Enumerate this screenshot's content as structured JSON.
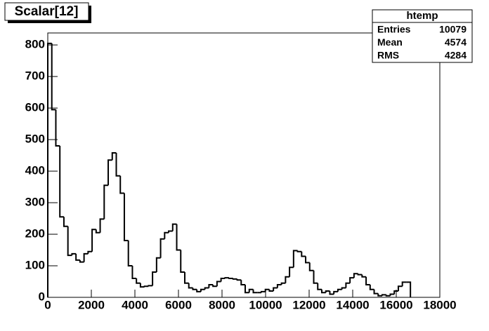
{
  "chart_data": {
    "type": "histogram",
    "title": "Scalar[12]",
    "bins": [
      0,
      185,
      370,
      555,
      740,
      925,
      1110,
      1295,
      1480,
      1665,
      1850,
      2035,
      2220,
      2405,
      2590,
      2775,
      2960,
      3145,
      3330,
      3515,
      3700,
      3885,
      4070,
      4255,
      4440,
      4625,
      4810,
      4995,
      5180,
      5365,
      5550,
      5735,
      5920,
      6105,
      6290,
      6475,
      6660,
      6845,
      7030,
      7215,
      7400,
      7585,
      7770,
      7955,
      8140,
      8325,
      8510,
      8695,
      8880,
      9065,
      9250,
      9435,
      9620,
      9805,
      9990,
      10175,
      10360,
      10545,
      10730,
      10915,
      11100,
      11285,
      11470,
      11655,
      11840,
      12025,
      12210,
      12395,
      12580,
      12765,
      12950,
      13135,
      13320,
      13505,
      13690,
      13875,
      14060,
      14245,
      14430,
      14615,
      14800,
      14985,
      15170,
      15355,
      15540,
      15725,
      15910,
      16095,
      16280,
      16465,
      16650
    ],
    "values": [
      805,
      595,
      480,
      255,
      225,
      133,
      138,
      118,
      112,
      138,
      145,
      215,
      205,
      248,
      355,
      435,
      458,
      385,
      330,
      180,
      100,
      60,
      45,
      33,
      35,
      37,
      80,
      125,
      185,
      205,
      210,
      232,
      150,
      80,
      45,
      30,
      25,
      18,
      25,
      30,
      40,
      35,
      50,
      60,
      62,
      60,
      58,
      55,
      40,
      15,
      25,
      15,
      15,
      18,
      25,
      20,
      30,
      40,
      45,
      65,
      95,
      148,
      145,
      130,
      110,
      85,
      45,
      25,
      15,
      20,
      10,
      18,
      25,
      30,
      45,
      62,
      75,
      72,
      65,
      40,
      25,
      12,
      5,
      8,
      5,
      10,
      20,
      35,
      48,
      48
    ],
    "color": "#000000",
    "xlim": [
      0,
      18000
    ],
    "xticks": [
      0,
      2000,
      4000,
      6000,
      8000,
      10000,
      12000,
      14000,
      16000,
      18000
    ],
    "ylim": [
      0,
      838
    ],
    "yticks": [
      0,
      100,
      200,
      300,
      400,
      500,
      600,
      700,
      800
    ],
    "stats": {
      "title": "htemp",
      "rows": [
        {
          "label": "Entries",
          "value": 10079
        },
        {
          "label": "Mean",
          "value": 4574
        },
        {
          "label": "RMS",
          "value": 4284
        }
      ]
    }
  }
}
